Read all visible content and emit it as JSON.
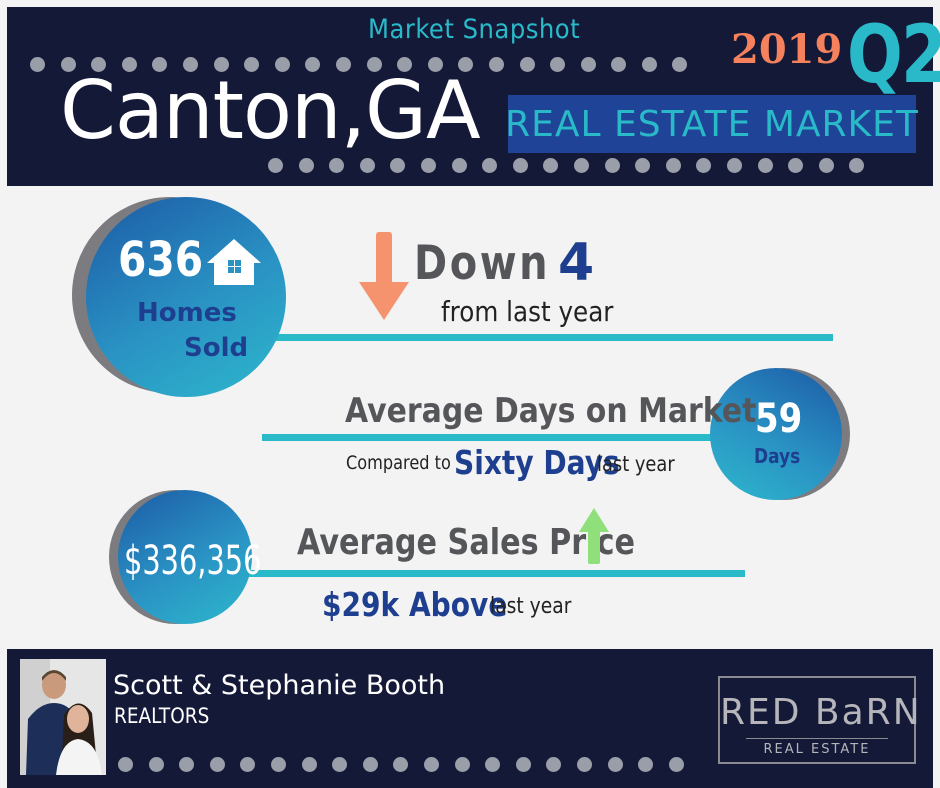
{
  "header": {
    "subtitle": "Market Snapshot",
    "city": "Canton,GA",
    "year": "2019",
    "quarter": "Q2",
    "banner": "REAL ESTATE MARKET"
  },
  "homes_sold": {
    "count": "636",
    "label_line1": "Homes",
    "label_line2": "Sold",
    "icon": "house-icon",
    "change_label": "Down",
    "change_value": "4",
    "change_sub": "from last year",
    "change_icon": "down-arrow-icon"
  },
  "days_on_market": {
    "title": "Average Days on Market",
    "compared_prefix": "Compared to",
    "compared_value": "Sixty Days",
    "compared_suffix": "last year",
    "value": "59",
    "unit": "Days"
  },
  "sales_price": {
    "value": "$336,356",
    "title": "Average Sales Price",
    "change_value": "$29k Above",
    "change_suffix": "last year",
    "change_icon": "up-arrow-icon"
  },
  "footer": {
    "agent_name": "Scott & Stephanie Booth",
    "agent_role": "REALTORS",
    "logo_top": "RED BaRN",
    "logo_bottom": "REAL ESTATE"
  },
  "colors": {
    "navy": "#141938",
    "teal": "#2ab9c9",
    "orange": "#f5825d",
    "banner_blue": "#1f4497",
    "text_navy": "#1e3f8f",
    "green": "#8fe07a"
  }
}
